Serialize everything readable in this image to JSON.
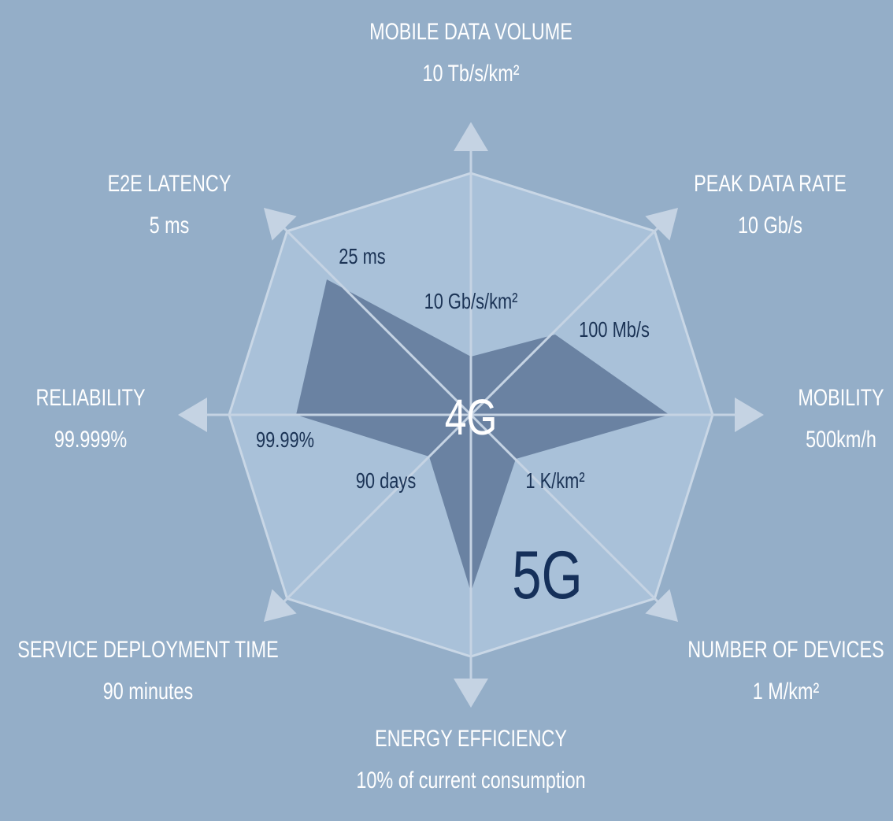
{
  "center": "4G",
  "outer": "5G",
  "axes": [
    {
      "name": "MOBILE DATA VOLUME",
      "target": "10 Tb/s/km²",
      "current": "10 Gb/s/km²"
    },
    {
      "name": "PEAK DATA RATE",
      "target": "10 Gb/s",
      "current": "100 Mb/s"
    },
    {
      "name": "MOBILITY",
      "target": "500km/h"
    },
    {
      "name": "NUMBER OF DEVICES",
      "target": "1 M/km²",
      "current": "1 K/km²"
    },
    {
      "name": "ENERGY EFFICIENCY",
      "target": "10% of current consumption"
    },
    {
      "name": "SERVICE DEPLOYMENT TIME",
      "target": "90 minutes",
      "current": "90 days"
    },
    {
      "name": "RELIABILITY",
      "target": "99.999%",
      "current": "99.99%"
    },
    {
      "name": "E2E LATENCY",
      "target": "5 ms",
      "current": "25 ms"
    }
  ]
}
